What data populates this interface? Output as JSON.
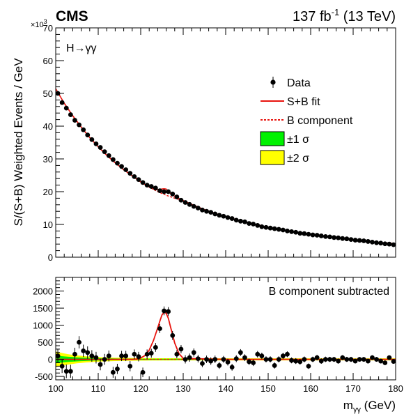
{
  "header": {
    "experiment": "CMS",
    "lumi": "137 fb",
    "lumi_exp": "-1",
    "energy": " (13 TeV)",
    "exponent_prefix": "×10",
    "exponent_power": "3"
  },
  "chart_data": [
    {
      "type": "scatter",
      "panel": "top",
      "annotation": "H→γγ",
      "ylabel": "S/(S+B) Weighted Events / GeV",
      "y_multiplier": "×10^3",
      "xlim": [
        100,
        180
      ],
      "ylim": [
        0,
        70
      ],
      "y_ticks": [
        0,
        10,
        20,
        30,
        40,
        50,
        60,
        70
      ],
      "legend_position": "top-right",
      "legend": [
        {
          "label": "Data",
          "style": "marker",
          "color": "#000000"
        },
        {
          "label": "S+B fit",
          "style": "solid-line",
          "color": "#e8120c"
        },
        {
          "label": "B component",
          "style": "dashed-line",
          "color": "#e8120c"
        },
        {
          "label": "±1 σ",
          "style": "box",
          "color": "#00f200"
        },
        {
          "label": "±2 σ",
          "style": "box",
          "color": "#ffff00"
        }
      ],
      "series": [
        {
          "name": "Data",
          "x": [
            100.5,
            101.5,
            102.5,
            103.5,
            104.5,
            105.5,
            106.5,
            107.5,
            108.5,
            109.5,
            110.5,
            111.5,
            112.5,
            113.5,
            114.5,
            115.5,
            116.5,
            117.5,
            118.5,
            119.5,
            120.5,
            121.5,
            122.5,
            123.5,
            124.5,
            125.5,
            126.5,
            127.5,
            128.5,
            129.5,
            130.5,
            131.5,
            132.5,
            133.5,
            134.5,
            135.5,
            136.5,
            137.5,
            138.5,
            139.5,
            140.5,
            141.5,
            142.5,
            143.5,
            144.5,
            145.5,
            146.5,
            147.5,
            148.5,
            149.5,
            150.5,
            151.5,
            152.5,
            153.5,
            154.5,
            155.5,
            156.5,
            157.5,
            158.5,
            159.5,
            160.5,
            161.5,
            162.5,
            163.5,
            164.5,
            165.5,
            166.5,
            167.5,
            168.5,
            169.5,
            170.5,
            171.5,
            172.5,
            173.5,
            174.5,
            175.5,
            176.5,
            177.5,
            178.5,
            179.5
          ],
          "y": [
            50.0,
            47.2,
            45.5,
            43.5,
            41.8,
            40.4,
            38.9,
            37.3,
            35.9,
            34.6,
            33.5,
            32.2,
            31.0,
            29.8,
            28.7,
            27.7,
            26.7,
            25.6,
            24.6,
            23.7,
            22.8,
            22.0,
            21.6,
            21.1,
            20.3,
            20.0,
            20.0,
            19.3,
            18.4,
            17.4,
            16.7,
            16.1,
            15.5,
            15.0,
            14.4,
            14.0,
            13.7,
            13.2,
            12.8,
            12.5,
            12.1,
            11.8,
            11.3,
            11.0,
            10.8,
            10.3,
            10.1,
            9.7,
            9.3,
            9.1,
            8.9,
            8.7,
            8.5,
            8.3,
            8.0,
            7.8,
            7.6,
            7.3,
            7.2,
            7.0,
            6.8,
            6.7,
            6.5,
            6.3,
            6.2,
            6.0,
            5.9,
            5.7,
            5.6,
            5.4,
            5.2,
            5.1,
            5.0,
            4.8,
            4.6,
            4.4,
            4.3,
            4.1,
            4.0,
            3.8
          ]
        },
        {
          "name": "S+B fit",
          "x": [
            100,
            102,
            104,
            106,
            108,
            110,
            112,
            114,
            116,
            118,
            120,
            122,
            123,
            124,
            125,
            125.5,
            126,
            127,
            128,
            130,
            132,
            135,
            140,
            145,
            150,
            155,
            160,
            165,
            170,
            175,
            180
          ],
          "y": [
            51.4,
            47.0,
            43.2,
            39.7,
            36.5,
            33.7,
            31.1,
            28.8,
            26.7,
            24.8,
            23.0,
            21.4,
            20.8,
            20.6,
            20.8,
            20.9,
            20.8,
            19.5,
            18.6,
            17.3,
            16.1,
            14.5,
            12.3,
            10.6,
            9.1,
            7.9,
            6.9,
            6.1,
            5.3,
            4.6,
            4.1
          ]
        },
        {
          "name": "B component",
          "x": [
            100,
            102,
            104,
            106,
            108,
            110,
            112,
            114,
            116,
            118,
            120,
            122,
            124,
            126,
            128,
            130,
            132,
            135,
            140,
            145,
            150,
            155,
            160,
            165,
            170,
            175,
            180
          ],
          "y": [
            51.4,
            47.0,
            43.2,
            39.7,
            36.5,
            33.7,
            31.1,
            28.8,
            26.7,
            24.8,
            23.0,
            21.4,
            20.0,
            18.9,
            18.0,
            17.2,
            16.1,
            14.5,
            12.3,
            10.6,
            9.1,
            7.9,
            6.9,
            6.1,
            5.3,
            4.6,
            4.1
          ]
        }
      ]
    },
    {
      "type": "scatter",
      "panel": "bottom",
      "annotation": "B component subtracted",
      "xlabel": "m",
      "xlabel_sub": "γγ",
      "xlabel_unit": " (GeV)",
      "xlim": [
        100,
        180
      ],
      "ylim": [
        -600,
        2400
      ],
      "x_ticks": [
        100,
        110,
        120,
        130,
        140,
        150,
        160,
        170,
        180
      ],
      "y_ticks": [
        -500,
        0,
        500,
        1000,
        1500,
        2000
      ],
      "series": [
        {
          "name": "Data",
          "x": [
            100.5,
            101.5,
            102.5,
            103.5,
            104.5,
            105.5,
            106.5,
            107.5,
            108.5,
            109.5,
            110.5,
            111.5,
            112.5,
            113.5,
            114.5,
            115.5,
            116.5,
            117.5,
            118.5,
            119.5,
            120.5,
            121.5,
            122.5,
            123.5,
            124.5,
            125.5,
            126.5,
            127.5,
            128.5,
            129.5,
            130.5,
            131.5,
            132.5,
            133.5,
            134.5,
            135.5,
            136.5,
            137.5,
            138.5,
            139.5,
            140.5,
            141.5,
            142.5,
            143.5,
            144.5,
            145.5,
            146.5,
            147.5,
            148.5,
            149.5,
            150.5,
            151.5,
            152.5,
            153.5,
            154.5,
            155.5,
            156.5,
            157.5,
            158.5,
            159.5,
            160.5,
            161.5,
            162.5,
            163.5,
            164.5,
            165.5,
            166.5,
            167.5,
            168.5,
            169.5,
            170.5,
            171.5,
            172.5,
            173.5,
            174.5,
            175.5,
            176.5,
            177.5,
            178.5,
            179.5
          ],
          "y": [
            100,
            -200,
            -350,
            -350,
            150,
            500,
            250,
            200,
            100,
            50,
            -150,
            0,
            100,
            -380,
            -280,
            100,
            100,
            -200,
            150,
            80,
            -380,
            150,
            180,
            350,
            900,
            1420,
            1400,
            700,
            150,
            300,
            0,
            50,
            200,
            20,
            -120,
            0,
            -50,
            0,
            -180,
            0,
            -80,
            -230,
            20,
            200,
            50,
            -70,
            -100,
            150,
            100,
            0,
            0,
            -180,
            0,
            100,
            150,
            -30,
            -50,
            -70,
            0,
            -200,
            0,
            50,
            -50,
            0,
            0,
            0,
            -50,
            50,
            0,
            0,
            -50,
            0,
            0,
            -50,
            50,
            0,
            -50,
            -100,
            50,
            -60
          ],
          "err": [
            200,
            200,
            200,
            190,
            190,
            180,
            180,
            180,
            170,
            170,
            170,
            160,
            160,
            160,
            150,
            150,
            150,
            150,
            140,
            140,
            140,
            140,
            130,
            130,
            130,
            130,
            130,
            130,
            120,
            120,
            120,
            120,
            120,
            110,
            110,
            110,
            110,
            110,
            100,
            100,
            100,
            100,
            100,
            100,
            100,
            95,
            95,
            95,
            95,
            90,
            90,
            90,
            90,
            90,
            85,
            85,
            85,
            85,
            85,
            80,
            80,
            80,
            80,
            80,
            75,
            75,
            75,
            75,
            75,
            75,
            70,
            70,
            70,
            70,
            70,
            70,
            70,
            65,
            65,
            65
          ]
        },
        {
          "name": "S+B fit",
          "x": [
            100,
            110,
            118,
            119,
            120,
            121,
            122,
            123,
            124,
            124.5,
            125,
            125.5,
            126,
            126.5,
            127,
            127.5,
            128,
            129,
            130,
            140,
            150,
            160,
            170,
            180
          ],
          "y": [
            0,
            0,
            0,
            10,
            40,
            110,
            270,
            550,
            920,
            1120,
            1300,
            1380,
            1350,
            1200,
            960,
            720,
            480,
            170,
            30,
            0,
            0,
            0,
            0,
            0
          ]
        }
      ]
    }
  ]
}
